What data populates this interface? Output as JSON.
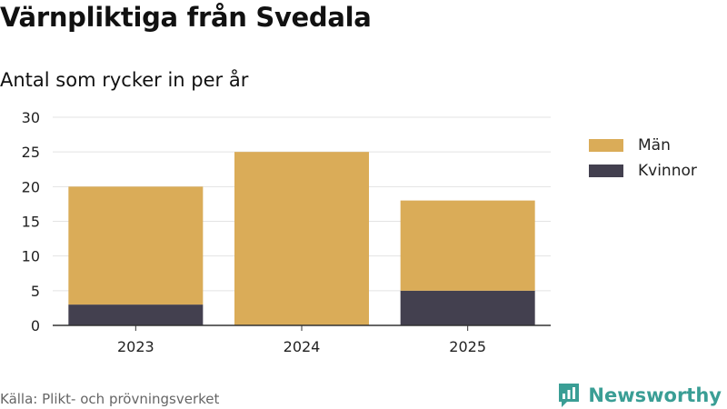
{
  "title": "Värnpliktiga från Svedala",
  "subtitle": "Antal som rycker in per år",
  "source": "Källa: Plikt- och prövningsverket",
  "brand": {
    "name": "Newsworthy",
    "icon": "bar-chart-logo-icon",
    "color": "#3a9e95"
  },
  "chart_data": {
    "type": "bar",
    "stacked": true,
    "categories": [
      "2023",
      "2024",
      "2025"
    ],
    "series": [
      {
        "name": "Kvinnor",
        "values": [
          3,
          0,
          5
        ],
        "color": "#43404f"
      },
      {
        "name": "Män",
        "values": [
          17,
          25,
          13
        ],
        "color": "#daac58"
      }
    ],
    "ylim": [
      0,
      30
    ],
    "yticks": [
      0,
      5,
      10,
      15,
      20,
      25,
      30
    ],
    "grid": true,
    "legend_position": "right",
    "xlabel": "",
    "ylabel": ""
  },
  "legend": [
    {
      "label": "Män",
      "color": "#daac58"
    },
    {
      "label": "Kvinnor",
      "color": "#43404f"
    }
  ]
}
